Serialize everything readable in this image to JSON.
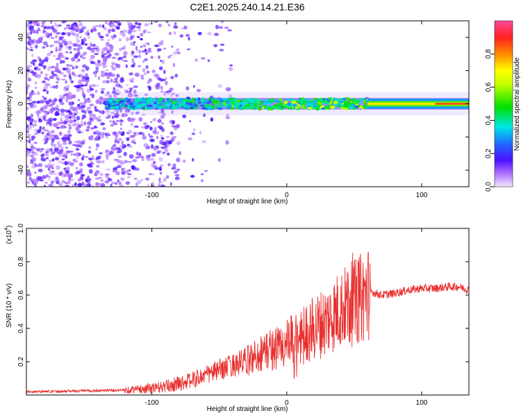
{
  "title": "C2E1.2025.240.14.21.E36",
  "chart_data": [
    {
      "type": "heatmap",
      "xlabel": "Height of straight line (km)",
      "ylabel": "Frequency (Hz)",
      "xlim": [
        -193,
        135
      ],
      "ylim": [
        -50,
        50
      ],
      "xticks": [
        -100,
        0,
        100
      ],
      "yticks": [
        -40,
        -20,
        0,
        20,
        40
      ],
      "colorbar": {
        "label": "Normalized spectral amplitude",
        "range": [
          0,
          1
        ],
        "ticks": [
          0.0,
          0.2,
          0.4,
          0.6,
          0.8
        ]
      },
      "description_points": {
        "noise_region_x": [
          -193,
          -80
        ],
        "signal_band_x": [
          -135,
          60
        ],
        "signal_center_hz": 0,
        "strong_tone_x": [
          60,
          135
        ]
      }
    },
    {
      "type": "line",
      "xlabel": "Height of straight line (km)",
      "ylabel": "SNR (10 * v/v)",
      "yscale_label": "(x10",
      "yscale_exp": "4",
      "xlim": [
        -193,
        135
      ],
      "ylim": [
        0,
        1.0
      ],
      "xticks": [
        -100,
        0,
        100
      ],
      "yticks": [
        0.2,
        0.4,
        0.6,
        0.8,
        1.0
      ],
      "color": "#e8302e",
      "envelope": {
        "x": [
          -193,
          -150,
          -120,
          -100,
          -90,
          -80,
          -70,
          -60,
          -50,
          -40,
          -30,
          -20,
          -10,
          0,
          10,
          20,
          30,
          40,
          50,
          58,
          62,
          70,
          80,
          90,
          100,
          110,
          120,
          128,
          135
        ],
        "y": [
          0.02,
          0.025,
          0.03,
          0.04,
          0.05,
          0.07,
          0.09,
          0.12,
          0.15,
          0.18,
          0.2,
          0.25,
          0.28,
          0.3,
          0.35,
          0.4,
          0.45,
          0.52,
          0.55,
          0.6,
          0.62,
          0.6,
          0.61,
          0.63,
          0.64,
          0.64,
          0.65,
          0.65,
          0.63
        ]
      }
    }
  ]
}
